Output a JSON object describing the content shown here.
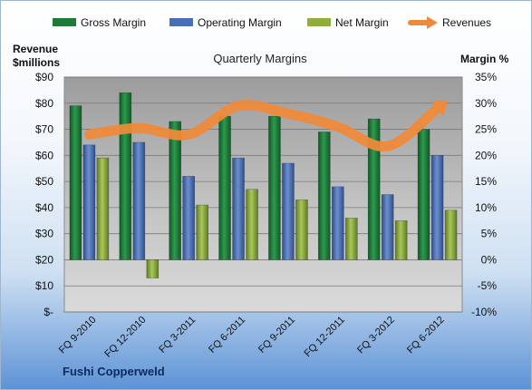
{
  "company": "Fushi Copperweld",
  "chart_data": {
    "type": "bar",
    "title": "Quarterly Margins",
    "left_axis_label": [
      "Revenue",
      "$millions"
    ],
    "right_axis_label": "Margin %",
    "categories": [
      "FQ 9-2010",
      "FQ 12-2010",
      "FQ 3-2011",
      "FQ 6-2011",
      "FQ 9-2011",
      "FQ 12-2011",
      "FQ 3-2012",
      "FQ 6-2012"
    ],
    "left_ticks": [
      "$-",
      "$10",
      "$20",
      "$30",
      "$40",
      "$50",
      "$60",
      "$70",
      "$80",
      "$90"
    ],
    "right_ticks": [
      "-10%",
      "-5%",
      "0%",
      "5%",
      "10%",
      "15%",
      "20%",
      "25%",
      "30%",
      "35%"
    ],
    "left_ylim": [
      0,
      90
    ],
    "right_ylim": [
      -10,
      35
    ],
    "legend_position": "top",
    "series": [
      {
        "name": "Gross Margin",
        "axis": "right",
        "color": "#1f7a3a",
        "values": [
          29.5,
          32,
          26.5,
          27.5,
          27.5,
          24.5,
          27,
          25
        ]
      },
      {
        "name": "Operating Margin",
        "axis": "right",
        "color": "#4a6fb5",
        "values": [
          22,
          22.5,
          16,
          19.5,
          18.5,
          14,
          12.5,
          20
        ]
      },
      {
        "name": "Net Margin",
        "axis": "right",
        "color": "#8fae3c",
        "values": [
          19.5,
          -3.5,
          10.5,
          13.5,
          11.5,
          8,
          7.5,
          9.5
        ]
      },
      {
        "name": "Revenues",
        "axis": "left",
        "color": "#ee8a3a",
        "values": [
          68,
          70.5,
          68,
          79,
          76,
          71,
          63.5,
          78
        ]
      }
    ]
  }
}
